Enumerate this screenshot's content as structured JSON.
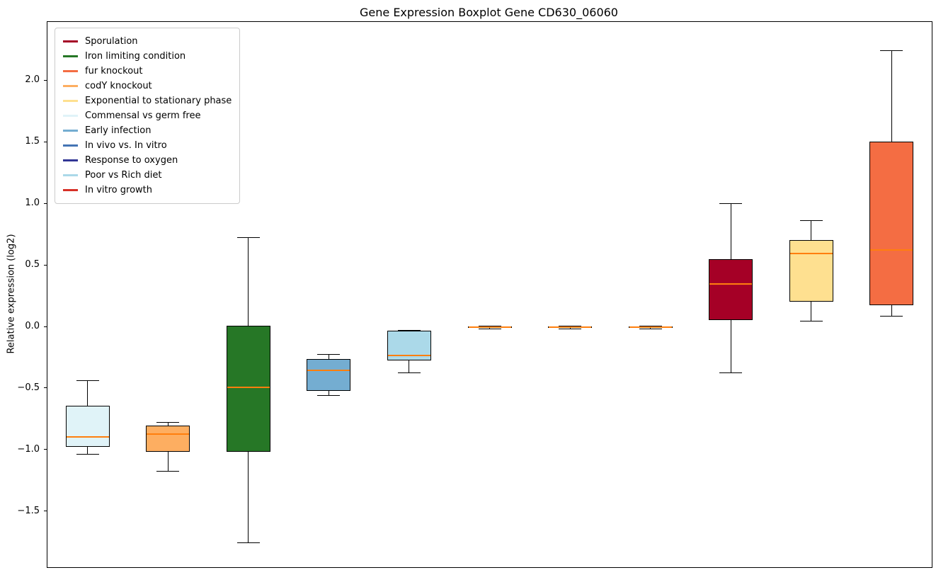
{
  "chart_data": {
    "type": "boxplot",
    "title": "Gene Expression Boxplot Gene CD630_06060",
    "ylabel": "Relative expression (log2)",
    "ylim": [
      -1.95,
      2.48
    ],
    "yticks": [
      2.0,
      1.5,
      1.0,
      0.5,
      0.0,
      -0.5,
      -1.0,
      -1.5
    ],
    "median_color": "#ff7f0e",
    "axis_color": "#000000",
    "legend_position": "upper-left",
    "grid": false,
    "legend": [
      {
        "label": "Sporulation",
        "color": "#a50026"
      },
      {
        "label": "Iron limiting condition",
        "color": "#267726"
      },
      {
        "label": "fur knockout",
        "color": "#f46d43"
      },
      {
        "label": "codY knockout",
        "color": "#fdae61"
      },
      {
        "label": "Exponential to stationary phase",
        "color": "#fee090"
      },
      {
        "label": "Commensal vs germ free",
        "color": "#e0f3f8"
      },
      {
        "label": "Early infection",
        "color": "#74add1"
      },
      {
        "label": "In vivo vs. In vitro",
        "color": "#4575b4"
      },
      {
        "label": "Response to oxygen",
        "color": "#313695"
      },
      {
        "label": "Poor vs Rich diet",
        "color": "#abd9e9"
      },
      {
        "label": "In vitro growth",
        "color": "#d73027"
      }
    ],
    "boxes": [
      {
        "condition": "Commensal vs germ free",
        "color": "#e0f3f8",
        "whisker_low": -1.03,
        "q1": -0.97,
        "median": -0.89,
        "q3": -0.64,
        "whisker_high": -0.43
      },
      {
        "condition": "codY knockout",
        "color": "#fdae61",
        "whisker_low": -1.17,
        "q1": -1.01,
        "median": -0.87,
        "q3": -0.8,
        "whisker_high": -0.77
      },
      {
        "condition": "Iron limiting condition",
        "color": "#267726",
        "whisker_low": -1.75,
        "q1": -1.01,
        "median": -0.49,
        "q3": 0.01,
        "whisker_high": 0.73
      },
      {
        "condition": "Early infection",
        "color": "#74add1",
        "whisker_low": -0.55,
        "q1": -0.52,
        "median": -0.35,
        "q3": -0.26,
        "whisker_high": -0.22
      },
      {
        "condition": "Poor vs Rich diet",
        "color": "#abd9e9",
        "whisker_low": -0.37,
        "q1": -0.27,
        "median": -0.23,
        "q3": -0.03,
        "whisker_high": -0.02
      },
      {
        "condition": "In vivo vs. In vitro",
        "color": "#4575b4",
        "whisker_low": -0.01,
        "q1": -0.005,
        "median": 0.0,
        "q3": 0.005,
        "whisker_high": 0.01
      },
      {
        "condition": "Response to oxygen",
        "color": "#313695",
        "whisker_low": -0.01,
        "q1": -0.005,
        "median": 0.0,
        "q3": 0.005,
        "whisker_high": 0.01
      },
      {
        "condition": "In vitro growth",
        "color": "#d73027",
        "whisker_low": -0.01,
        "q1": -0.005,
        "median": 0.0,
        "q3": 0.005,
        "whisker_high": 0.01
      },
      {
        "condition": "Sporulation",
        "color": "#a50026",
        "whisker_low": -0.37,
        "q1": 0.06,
        "median": 0.35,
        "q3": 0.55,
        "whisker_high": 1.01
      },
      {
        "condition": "Exponential to stationary phase",
        "color": "#fee090",
        "whisker_low": 0.05,
        "q1": 0.21,
        "median": 0.6,
        "q3": 0.71,
        "whisker_high": 0.87
      },
      {
        "condition": "fur knockout",
        "color": "#f46d43",
        "whisker_low": 0.09,
        "q1": 0.18,
        "median": 0.63,
        "q3": 1.51,
        "whisker_high": 2.25
      }
    ]
  }
}
